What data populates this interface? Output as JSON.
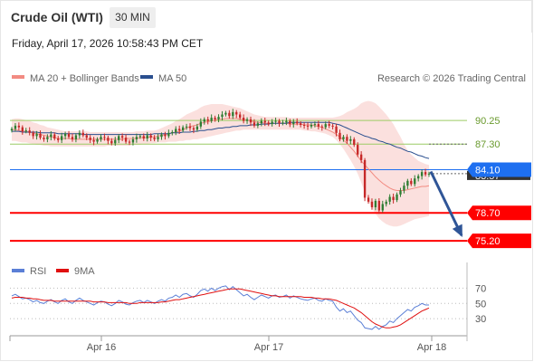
{
  "header": {
    "instrument": "Crude Oil (WTI)",
    "timeframe": "30 MIN",
    "timestamp": "Friday, April 17, 2026 10:58:43 PM CET",
    "copyright": "Research © 2026 Trading Central"
  },
  "legend": {
    "price": [
      {
        "label": "MA 20 + Bollinger Bands",
        "color": "#f28b82"
      },
      {
        "label": "MA 50",
        "color": "#2a4f8f"
      }
    ],
    "rsi": [
      {
        "label": "RSI",
        "color": "#5b7fd6"
      },
      {
        "label": "9MA",
        "color": "#e01010"
      }
    ]
  },
  "colors": {
    "up": "#2e7d32",
    "down": "#c62828",
    "support": "#ff0000",
    "resistance": "#9ccc65",
    "current": "#1e6ff0",
    "arrow": "#2f5597",
    "band_fill": "#fadbd8"
  },
  "chart_data": [
    {
      "type": "candlestick",
      "panel": "price",
      "x_ticks": [
        "Apr 16",
        "Apr 17",
        "Apr 18"
      ],
      "y_range": [
        72.5,
        94.0
      ],
      "levels": [
        {
          "value": 90.25,
          "label": "90.25",
          "kind": "resistance"
        },
        {
          "value": 87.3,
          "label": "87.30",
          "kind": "resistance"
        },
        {
          "value": 84.1,
          "label": "84.10",
          "kind": "current"
        },
        {
          "value": 78.7,
          "label": "78.70",
          "kind": "support"
        },
        {
          "value": 75.2,
          "label": "75.20",
          "kind": "support"
        }
      ],
      "last_price_label": "83.57",
      "close": [
        89.2,
        89.6,
        89.4,
        88.9,
        89.0,
        88.7,
        88.3,
        88.6,
        88.1,
        87.9,
        88.2,
        88.5,
        88.0,
        87.8,
        88.3,
        88.6,
        88.2,
        87.9,
        88.4,
        88.7,
        88.4,
        88.1,
        87.8,
        87.6,
        87.9,
        88.2,
        88.1,
        87.7,
        87.4,
        87.8,
        88.3,
        88.1,
        87.6,
        87.5,
        87.9,
        88.2,
        88.3,
        88.0,
        88.4,
        88.1,
        87.9,
        88.2,
        88.5,
        88.3,
        88.7,
        88.8,
        89.2,
        89.0,
        89.4,
        89.5,
        89.3,
        89.1,
        89.5,
        90.1,
        90.4,
        90.2,
        90.6,
        90.4,
        90.7,
        91.0,
        91.2,
        90.8,
        91.3,
        91.0,
        90.6,
        90.2,
        90.4,
        90.0,
        89.6,
        89.9,
        90.2,
        90.0,
        89.8,
        90.1,
        90.2,
        89.9,
        90.0,
        90.2,
        89.8,
        90.1,
        89.9,
        89.7,
        89.6,
        89.5,
        89.7,
        89.8,
        89.5,
        89.4,
        89.8,
        89.6,
        89.5,
        88.7,
        87.9,
        88.2,
        87.7,
        87.9,
        87.2,
        86.0,
        85.3,
        80.6,
        80.1,
        79.4,
        80.2,
        79.0,
        79.8,
        80.1,
        80.7,
        80.3,
        81.0,
        81.5,
        82.1,
        82.7,
        82.3,
        83.0,
        83.3,
        83.8,
        83.5,
        83.6
      ],
      "bollinger_upper": [
        90.4,
        90.5,
        90.5,
        90.4,
        90.3,
        90.2,
        90.0,
        89.9,
        89.7,
        89.6,
        89.4,
        89.3,
        89.2,
        89.1,
        89.0,
        88.9,
        88.9,
        88.9,
        88.9,
        88.9,
        88.9,
        88.9,
        88.8,
        88.8,
        88.8,
        88.8,
        88.8,
        88.8,
        88.8,
        88.8,
        88.8,
        88.8,
        88.8,
        88.8,
        88.8,
        88.9,
        88.9,
        88.9,
        89.0,
        89.0,
        89.0,
        89.1,
        89.3,
        89.5,
        89.7,
        89.9,
        90.2,
        90.4,
        90.7,
        91.0,
        91.2,
        91.4,
        91.6,
        91.9,
        92.1,
        92.2,
        92.3,
        92.3,
        92.3,
        92.3,
        92.2,
        92.1,
        92.0,
        91.9,
        91.8,
        91.6,
        91.4,
        91.2,
        91.0,
        90.9,
        90.8,
        90.7,
        90.7,
        90.7,
        90.7,
        90.7,
        90.7,
        90.7,
        90.6,
        90.6,
        90.6,
        90.6,
        90.6,
        90.6,
        90.6,
        90.6,
        90.6,
        90.6,
        90.6,
        90.6,
        90.6,
        90.7,
        90.8,
        91.0,
        91.3,
        91.5,
        91.7,
        92.0,
        92.4,
        92.6,
        92.7,
        92.6,
        92.4,
        92.0,
        91.5,
        91.0,
        90.4,
        89.8,
        89.0,
        88.2,
        87.3,
        86.5,
        86.0,
        85.6,
        85.2,
        85.0,
        84.8,
        84.7
      ],
      "bollinger_lower": [
        87.7,
        87.7,
        87.6,
        87.5,
        87.5,
        87.4,
        87.3,
        87.2,
        87.2,
        87.1,
        87.1,
        87.0,
        87.0,
        87.0,
        87.0,
        87.0,
        87.0,
        87.0,
        87.0,
        87.0,
        87.0,
        87.0,
        87.0,
        87.0,
        87.0,
        87.0,
        87.0,
        87.1,
        87.1,
        87.1,
        87.1,
        87.1,
        87.1,
        87.1,
        87.2,
        87.2,
        87.2,
        87.3,
        87.3,
        87.4,
        87.4,
        87.5,
        87.5,
        87.5,
        87.6,
        87.6,
        87.6,
        87.7,
        87.7,
        87.8,
        87.8,
        87.9,
        87.9,
        88.0,
        88.1,
        88.2,
        88.3,
        88.4,
        88.5,
        88.6,
        88.7,
        88.8,
        88.9,
        89.0,
        89.0,
        89.1,
        89.1,
        89.1,
        89.1,
        89.1,
        89.1,
        89.1,
        89.1,
        89.1,
        89.1,
        89.1,
        89.1,
        89.1,
        89.1,
        89.1,
        89.1,
        89.1,
        89.0,
        89.0,
        88.9,
        88.9,
        88.8,
        88.7,
        88.6,
        88.4,
        88.2,
        87.8,
        87.3,
        86.7,
        86.0,
        85.3,
        84.5,
        83.6,
        82.5,
        81.3,
        80.2,
        79.3,
        78.6,
        78.0,
        77.6,
        77.3,
        77.1,
        77.0,
        77.0,
        77.1,
        77.3,
        77.5,
        77.7,
        77.9,
        78.0,
        78.1,
        78.2,
        78.3
      ],
      "ma20": [
        89.1,
        89.1,
        89.0,
        88.9,
        88.9,
        88.8,
        88.7,
        88.6,
        88.5,
        88.4,
        88.3,
        88.2,
        88.1,
        88.0,
        88.0,
        88.0,
        88.0,
        87.9,
        87.9,
        87.9,
        87.9,
        87.9,
        87.9,
        87.9,
        87.9,
        87.9,
        87.9,
        87.9,
        87.9,
        87.9,
        87.9,
        87.9,
        88.0,
        88.0,
        88.0,
        88.0,
        88.1,
        88.1,
        88.1,
        88.2,
        88.2,
        88.3,
        88.4,
        88.5,
        88.6,
        88.7,
        88.8,
        88.9,
        89.1,
        89.3,
        89.5,
        89.6,
        89.7,
        89.9,
        90.0,
        90.1,
        90.2,
        90.3,
        90.4,
        90.4,
        90.5,
        90.5,
        90.5,
        90.5,
        90.4,
        90.4,
        90.3,
        90.2,
        90.1,
        90.0,
        90.0,
        89.9,
        89.9,
        89.9,
        89.9,
        89.9,
        89.9,
        89.9,
        89.8,
        89.8,
        89.8,
        89.8,
        89.7,
        89.7,
        89.7,
        89.6,
        89.5,
        89.4,
        89.2,
        89.0,
        88.8,
        88.5,
        88.2,
        87.8,
        87.4,
        86.9,
        86.4,
        85.8,
        85.2,
        84.7,
        84.2,
        83.7,
        83.2,
        82.8,
        82.4,
        82.1,
        81.8,
        81.6,
        81.5,
        81.5,
        81.5,
        81.6,
        81.7,
        81.8,
        81.9,
        82.0,
        82.0,
        82.1
      ],
      "ma50": [
        88.9,
        88.9,
        88.9,
        88.8,
        88.8,
        88.8,
        88.8,
        88.8,
        88.7,
        88.7,
        88.7,
        88.7,
        88.7,
        88.6,
        88.6,
        88.6,
        88.6,
        88.6,
        88.6,
        88.6,
        88.5,
        88.5,
        88.5,
        88.5,
        88.5,
        88.5,
        88.5,
        88.5,
        88.5,
        88.5,
        88.5,
        88.5,
        88.5,
        88.5,
        88.5,
        88.5,
        88.5,
        88.5,
        88.5,
        88.5,
        88.6,
        88.6,
        88.6,
        88.6,
        88.6,
        88.7,
        88.7,
        88.7,
        88.8,
        88.8,
        88.8,
        88.9,
        88.9,
        89.0,
        89.0,
        89.1,
        89.1,
        89.2,
        89.3,
        89.3,
        89.4,
        89.4,
        89.5,
        89.5,
        89.6,
        89.6,
        89.6,
        89.7,
        89.7,
        89.7,
        89.8,
        89.8,
        89.8,
        89.9,
        89.9,
        89.9,
        89.9,
        89.9,
        90.0,
        90.0,
        90.0,
        90.0,
        90.0,
        90.0,
        90.0,
        90.0,
        90.0,
        90.0,
        90.0,
        90.0,
        89.9,
        89.8,
        89.7,
        89.5,
        89.3,
        89.1,
        88.9,
        88.7,
        88.5,
        88.3,
        88.2,
        88.0,
        87.9,
        87.7,
        87.6,
        87.4,
        87.3,
        87.1,
        86.9,
        86.8,
        86.6,
        86.4,
        86.3,
        86.1,
        85.9,
        85.8,
        85.6,
        85.5
      ],
      "projection": {
        "from": 84.1,
        "to": 75.2
      }
    },
    {
      "type": "line",
      "panel": "rsi",
      "y_ticks": [
        70,
        50,
        30
      ],
      "y_range": [
        10,
        80
      ],
      "series": [
        {
          "name": "RSI",
          "values": [
            60,
            62,
            59,
            56,
            57,
            55,
            52,
            54,
            51,
            50,
            53,
            55,
            52,
            50,
            54,
            56,
            52,
            50,
            54,
            57,
            54,
            52,
            50,
            48,
            51,
            53,
            52,
            49,
            47,
            50,
            54,
            52,
            49,
            48,
            51,
            53,
            54,
            51,
            54,
            52,
            50,
            53,
            55,
            53,
            57,
            58,
            61,
            58,
            62,
            63,
            60,
            58,
            62,
            67,
            69,
            66,
            70,
            67,
            70,
            72,
            73,
            68,
            72,
            68,
            64,
            60,
            62,
            58,
            55,
            58,
            61,
            59,
            57,
            60,
            61,
            58,
            59,
            61,
            57,
            60,
            58,
            56,
            55,
            54,
            56,
            57,
            54,
            53,
            56,
            54,
            53,
            45,
            40,
            43,
            38,
            40,
            34,
            28,
            25,
            18,
            17,
            16,
            20,
            16,
            20,
            22,
            27,
            25,
            30,
            34,
            38,
            42,
            40,
            45,
            47,
            50,
            48,
            48
          ]
        },
        {
          "name": "9MA",
          "values": [
            57,
            58,
            58,
            58,
            57,
            57,
            56,
            56,
            55,
            54,
            54,
            54,
            53,
            53,
            53,
            53,
            53,
            53,
            53,
            53,
            53,
            53,
            53,
            52,
            52,
            52,
            52,
            51,
            51,
            51,
            51,
            51,
            51,
            50,
            50,
            50,
            51,
            51,
            51,
            51,
            51,
            51,
            52,
            52,
            53,
            54,
            55,
            55,
            56,
            57,
            58,
            59,
            60,
            61,
            62,
            63,
            64,
            65,
            66,
            67,
            68,
            69,
            69,
            69,
            69,
            68,
            67,
            66,
            65,
            64,
            63,
            62,
            61,
            60,
            60,
            59,
            59,
            59,
            59,
            59,
            59,
            59,
            58,
            58,
            58,
            57,
            57,
            56,
            56,
            56,
            55,
            54,
            52,
            50,
            48,
            46,
            44,
            41,
            38,
            34,
            30,
            26,
            23,
            21,
            19,
            18,
            18,
            19,
            20,
            22,
            25,
            28,
            31,
            34,
            37,
            40,
            42,
            44
          ]
        }
      ]
    }
  ]
}
